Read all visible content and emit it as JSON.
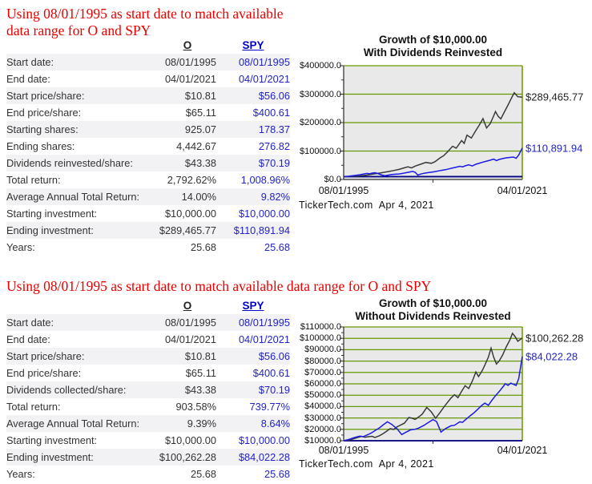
{
  "colors": {
    "heading_red": "#e90000",
    "link_blue": "#0000cc",
    "value_blue": "#2323c8",
    "text_dark": "#333333",
    "row_alt_bg": "#f2f2f4",
    "plot_bg": "#e9e9e9",
    "grid_green": "#669900",
    "axis_dark": "#333333",
    "line_black": "#3a3a3a",
    "line_blue": "#1a1ae6",
    "baseline_navy": "#000080"
  },
  "sections": [
    {
      "heading": "Using 08/01/1995 as start date to match available data range for O and SPY",
      "table": {
        "columns": [
          "",
          "O",
          "SPY"
        ],
        "rows": [
          [
            "Start date:",
            "08/01/1995",
            "08/01/1995"
          ],
          [
            "End date:",
            "04/01/2021",
            "04/01/2021"
          ],
          [
            "Start price/share:",
            "$10.81",
            "$56.06"
          ],
          [
            "End price/share:",
            "$65.11",
            "$400.61"
          ],
          [
            "Starting shares:",
            "925.07",
            "178.37"
          ],
          [
            "Ending shares:",
            "4,442.67",
            "276.82"
          ],
          [
            "Dividends reinvested/share:",
            "$43.38",
            "$70.19"
          ],
          [
            "Total return:",
            "2,792.62%",
            "1,008.96%"
          ],
          [
            "Average Annual Total Return:",
            "14.00%",
            "9.82%"
          ],
          [
            "Starting investment:",
            "$10,000.00",
            "$10,000.00"
          ],
          [
            "Ending investment:",
            "$289,465.77",
            "$110,891.94"
          ],
          [
            "Years:",
            "25.68",
            "25.68"
          ]
        ]
      }
    },
    {
      "heading": "Using 08/01/1995 as start date to match available data range for O and SPY",
      "table": {
        "columns": [
          "",
          "O",
          "SPY"
        ],
        "rows": [
          [
            "Start date:",
            "08/01/1995",
            "08/01/1995"
          ],
          [
            "End date:",
            "04/01/2021",
            "04/01/2021"
          ],
          [
            "Start price/share:",
            "$10.81",
            "$56.06"
          ],
          [
            "End price/share:",
            "$65.11",
            "$400.61"
          ],
          [
            "Dividends collected/share:",
            "$43.38",
            "$70.19"
          ],
          [
            "Total return:",
            "903.58%",
            "739.77%"
          ],
          [
            "Average Annual Total Return:",
            "9.39%",
            "8.64%"
          ],
          [
            "Starting investment:",
            "$10,000.00",
            "$10,000.00"
          ],
          [
            "Ending investment:",
            "$100,262.28",
            "$84,022.28"
          ],
          [
            "Years:",
            "25.68",
            "25.68"
          ]
        ]
      }
    }
  ],
  "chart_data": [
    {
      "type": "line",
      "title_lines": [
        "Growth of $10,000.00",
        "With Dividends Reinvested"
      ],
      "ylim": [
        0,
        400000
      ],
      "y_major": 100000,
      "y_minor": 50000,
      "y_tick_labels": [
        "$400000.0",
        "$300000.0",
        "$200000.0",
        "$100000.0",
        "$0.0"
      ],
      "x_tick_labels": [
        "08/01/1995",
        "04/01/2021"
      ],
      "footer": "TickerTech.com  Apr 4, 2021",
      "grid": true,
      "legend_position": "none",
      "baseline_value": 10000,
      "series": [
        {
          "name": "O",
          "color_key": "line_black",
          "end_label": "$289,465.77",
          "end_label_color": "#222222",
          "points": [
            [
              0,
              10000
            ],
            [
              0.02,
              10600
            ],
            [
              0.04,
              11300
            ],
            [
              0.06,
              12200
            ],
            [
              0.08,
              11800
            ],
            [
              0.1,
              13200
            ],
            [
              0.13,
              15500
            ],
            [
              0.16,
              18500
            ],
            [
              0.19,
              21500
            ],
            [
              0.22,
              24500
            ],
            [
              0.25,
              28000
            ],
            [
              0.28,
              31500
            ],
            [
              0.31,
              35500
            ],
            [
              0.34,
              41000
            ],
            [
              0.36,
              44500
            ],
            [
              0.38,
              40500
            ],
            [
              0.4,
              47000
            ],
            [
              0.43,
              53500
            ],
            [
              0.46,
              60000
            ],
            [
              0.49,
              57000
            ],
            [
              0.51,
              62000
            ],
            [
              0.54,
              76000
            ],
            [
              0.56,
              84000
            ],
            [
              0.58,
              96000
            ],
            [
              0.61,
              117000
            ],
            [
              0.63,
              110000
            ],
            [
              0.66,
              137000
            ],
            [
              0.675,
              127000
            ],
            [
              0.69,
              156000
            ],
            [
              0.715,
              146000
            ],
            [
              0.74,
              172000
            ],
            [
              0.76,
              192000
            ],
            [
              0.78,
              214000
            ],
            [
              0.8,
              181000
            ],
            [
              0.82,
              196000
            ],
            [
              0.84,
              224000
            ],
            [
              0.85,
              239000
            ],
            [
              0.865,
              222000
            ],
            [
              0.88,
              213000
            ],
            [
              0.9,
              238000
            ],
            [
              0.92,
              262000
            ],
            [
              0.94,
              287000
            ],
            [
              0.955,
              305000
            ],
            [
              0.975,
              291000
            ],
            [
              1,
              289466
            ]
          ]
        },
        {
          "name": "SPY",
          "color_key": "line_blue",
          "end_label": "$110,891.94",
          "end_label_color": "#2323c8",
          "points": [
            [
              0,
              10000
            ],
            [
              0.03,
              11500
            ],
            [
              0.06,
              14000
            ],
            [
              0.09,
              16500
            ],
            [
              0.11,
              19000
            ],
            [
              0.13,
              21500
            ],
            [
              0.145,
              20000
            ],
            [
              0.16,
              22500
            ],
            [
              0.175,
              24000
            ],
            [
              0.19,
              21000
            ],
            [
              0.21,
              16500
            ],
            [
              0.23,
              13500
            ],
            [
              0.25,
              15500
            ],
            [
              0.27,
              17500
            ],
            [
              0.29,
              18500
            ],
            [
              0.31,
              19500
            ],
            [
              0.33,
              21500
            ],
            [
              0.35,
              24000
            ],
            [
              0.37,
              26500
            ],
            [
              0.385,
              28500
            ],
            [
              0.4,
              25500
            ],
            [
              0.415,
              15500
            ],
            [
              0.43,
              19000
            ],
            [
              0.45,
              22000
            ],
            [
              0.47,
              24000
            ],
            [
              0.49,
              25500
            ],
            [
              0.51,
              27500
            ],
            [
              0.53,
              30000
            ],
            [
              0.55,
              32500
            ],
            [
              0.57,
              34500
            ],
            [
              0.59,
              37500
            ],
            [
              0.61,
              40500
            ],
            [
              0.63,
              43500
            ],
            [
              0.65,
              46500
            ],
            [
              0.665,
              44500
            ],
            [
              0.68,
              48000
            ],
            [
              0.7,
              51500
            ],
            [
              0.72,
              47500
            ],
            [
              0.74,
              53500
            ],
            [
              0.76,
              57500
            ],
            [
              0.78,
              61000
            ],
            [
              0.8,
              64500
            ],
            [
              0.82,
              68000
            ],
            [
              0.84,
              71500
            ],
            [
              0.855,
              66500
            ],
            [
              0.87,
              70500
            ],
            [
              0.89,
              73500
            ],
            [
              0.91,
              76000
            ],
            [
              0.93,
              77500
            ],
            [
              0.95,
              79000
            ],
            [
              0.965,
              74500
            ],
            [
              0.98,
              86000
            ],
            [
              1,
              110892
            ]
          ]
        }
      ]
    },
    {
      "type": "line",
      "title_lines": [
        "Growth of $10,000.00",
        "Without Dividends Reinvested"
      ],
      "ylim": [
        10000,
        110000
      ],
      "y_major": 10000,
      "y_minor": 5000,
      "y_tick_labels": [
        "$110000.0",
        "$100000.0",
        "$90000.0",
        "$80000.0",
        "$70000.0",
        "$60000.0",
        "$50000.0",
        "$40000.0",
        "$30000.0",
        "$20000.0",
        "$10000.0"
      ],
      "x_tick_labels": [
        "08/01/1995",
        "04/01/2021"
      ],
      "footer": "TickerTech.com  Apr 4, 2021",
      "grid": true,
      "legend_position": "none",
      "baseline_value": 10000,
      "series": [
        {
          "name": "O",
          "color_key": "line_black",
          "end_label": "$100,262.28",
          "end_label_color": "#222222",
          "points": [
            [
              0,
              10000
            ],
            [
              0.02,
              10400
            ],
            [
              0.04,
              10900
            ],
            [
              0.06,
              11900
            ],
            [
              0.08,
              12900
            ],
            [
              0.1,
              13700
            ],
            [
              0.12,
              13100
            ],
            [
              0.14,
              13600
            ],
            [
              0.16,
              13900
            ],
            [
              0.175,
              12900
            ],
            [
              0.2,
              14400
            ],
            [
              0.22,
              16100
            ],
            [
              0.24,
              18300
            ],
            [
              0.26,
              20600
            ],
            [
              0.28,
              19900
            ],
            [
              0.3,
              22300
            ],
            [
              0.32,
              23900
            ],
            [
              0.34,
              25400
            ],
            [
              0.365,
              30400
            ],
            [
              0.385,
              29700
            ],
            [
              0.4,
              28700
            ],
            [
              0.42,
              30900
            ],
            [
              0.44,
              33400
            ],
            [
              0.465,
              39300
            ],
            [
              0.49,
              35400
            ],
            [
              0.515,
              29700
            ],
            [
              0.54,
              34900
            ],
            [
              0.56,
              39400
            ],
            [
              0.58,
              43400
            ],
            [
              0.6,
              47400
            ],
            [
              0.62,
              50400
            ],
            [
              0.64,
              47900
            ],
            [
              0.66,
              53400
            ],
            [
              0.68,
              58400
            ],
            [
              0.7,
              55900
            ],
            [
              0.72,
              62400
            ],
            [
              0.74,
              70400
            ],
            [
              0.755,
              66400
            ],
            [
              0.775,
              71400
            ],
            [
              0.79,
              76400
            ],
            [
              0.81,
              83400
            ],
            [
              0.825,
              91400
            ],
            [
              0.84,
              83400
            ],
            [
              0.855,
              77400
            ],
            [
              0.87,
              79900
            ],
            [
              0.89,
              85400
            ],
            [
              0.91,
              92400
            ],
            [
              0.93,
              98400
            ],
            [
              0.945,
              104400
            ],
            [
              0.96,
              101400
            ],
            [
              0.975,
              97400
            ],
            [
              1,
              100262
            ]
          ]
        },
        {
          "name": "SPY",
          "color_key": "line_blue",
          "end_label": "$84,022.28",
          "end_label_color": "#2323c8",
          "points": [
            [
              0,
              10000
            ],
            [
              0.03,
              11200
            ],
            [
              0.06,
              12800
            ],
            [
              0.09,
              14000
            ],
            [
              0.11,
              13600
            ],
            [
              0.14,
              15600
            ],
            [
              0.16,
              17300
            ],
            [
              0.18,
              19300
            ],
            [
              0.2,
              21300
            ],
            [
              0.22,
              23800
            ],
            [
              0.245,
              26600
            ],
            [
              0.27,
              24300
            ],
            [
              0.3,
              20300
            ],
            [
              0.325,
              15400
            ],
            [
              0.35,
              17600
            ],
            [
              0.375,
              19600
            ],
            [
              0.4,
              20100
            ],
            [
              0.42,
              21100
            ],
            [
              0.45,
              23600
            ],
            [
              0.475,
              26100
            ],
            [
              0.5,
              28600
            ],
            [
              0.52,
              26800
            ],
            [
              0.545,
              17600
            ],
            [
              0.57,
              20600
            ],
            [
              0.6,
              23100
            ],
            [
              0.62,
              23600
            ],
            [
              0.65,
              26600
            ],
            [
              0.665,
              26100
            ],
            [
              0.69,
              29600
            ],
            [
              0.71,
              32100
            ],
            [
              0.73,
              34600
            ],
            [
              0.75,
              37600
            ],
            [
              0.77,
              40600
            ],
            [
              0.79,
              43100
            ],
            [
              0.81,
              41100
            ],
            [
              0.83,
              45600
            ],
            [
              0.85,
              49600
            ],
            [
              0.87,
              53100
            ],
            [
              0.89,
              57100
            ],
            [
              0.905,
              60100
            ],
            [
              0.92,
              58600
            ],
            [
              0.935,
              60600
            ],
            [
              0.95,
              59600
            ],
            [
              0.965,
              58600
            ],
            [
              0.98,
              64600
            ],
            [
              1,
              84022
            ]
          ]
        }
      ]
    }
  ]
}
